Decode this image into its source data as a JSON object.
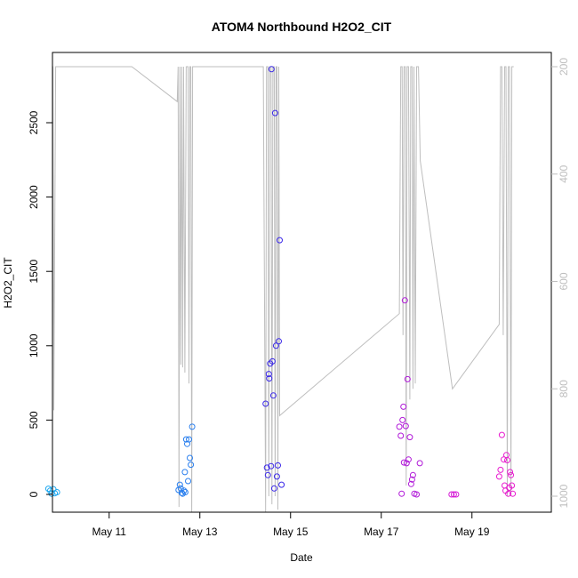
{
  "chart_data": {
    "type": "scatter",
    "title": "ATOM4 Northbound H2O2_CIT",
    "xlabel": "Date",
    "ylabel": "H2O2_CIT",
    "x_ticks": [
      "May 11",
      "May 13",
      "May 15",
      "May 17",
      "May 19"
    ],
    "y_ticks": [
      "0",
      "500",
      "1000",
      "1500",
      "2000",
      "2500"
    ],
    "y2_ticks": [
      "200",
      "400",
      "600",
      "800",
      "1000"
    ],
    "xlim_days": [
      9.75,
      20.05
    ],
    "ylim": [
      -110,
      2960
    ],
    "y2lim_reversed": [
      185,
      1030
    ],
    "axis_color": "#000000",
    "secondary_color": "#bebebe",
    "points": [
      {
        "x": 9.66,
        "y": 38,
        "c": "#1ea8f0"
      },
      {
        "x": 9.7,
        "y": 25,
        "c": "#1ea8f0"
      },
      {
        "x": 9.73,
        "y": 5,
        "c": "#1ea8f0"
      },
      {
        "x": 9.77,
        "y": 35,
        "c": "#1ea8f0"
      },
      {
        "x": 9.8,
        "y": 8,
        "c": "#1ea8f0"
      },
      {
        "x": 9.85,
        "y": 15,
        "c": "#1ea8f0"
      },
      {
        "x": 12.53,
        "y": 30,
        "c": "#2a7fee"
      },
      {
        "x": 12.56,
        "y": 65,
        "c": "#2a7fee"
      },
      {
        "x": 12.58,
        "y": 40,
        "c": "#2a7fee"
      },
      {
        "x": 12.6,
        "y": 10,
        "c": "#2a7fee"
      },
      {
        "x": 12.62,
        "y": 5,
        "c": "#2a7fee"
      },
      {
        "x": 12.65,
        "y": 25,
        "c": "#2a7fee"
      },
      {
        "x": 12.67,
        "y": 150,
        "c": "#2a7fee"
      },
      {
        "x": 12.68,
        "y": 15,
        "c": "#2a7fee"
      },
      {
        "x": 12.7,
        "y": 370,
        "c": "#2a7fee"
      },
      {
        "x": 12.72,
        "y": 340,
        "c": "#2a7fee"
      },
      {
        "x": 12.74,
        "y": 90,
        "c": "#2a7fee"
      },
      {
        "x": 12.76,
        "y": 370,
        "c": "#2a7fee"
      },
      {
        "x": 12.78,
        "y": 245,
        "c": "#2a7fee"
      },
      {
        "x": 12.8,
        "y": 200,
        "c": "#2a7fee"
      },
      {
        "x": 12.83,
        "y": 455,
        "c": "#2a7fee"
      },
      {
        "x": 14.45,
        "y": 610,
        "c": "#3a28e8"
      },
      {
        "x": 14.48,
        "y": 180,
        "c": "#3a28e8"
      },
      {
        "x": 14.5,
        "y": 130,
        "c": "#3a28e8"
      },
      {
        "x": 14.52,
        "y": 810,
        "c": "#3a28e8"
      },
      {
        "x": 14.53,
        "y": 780,
        "c": "#3a28e8"
      },
      {
        "x": 14.55,
        "y": 880,
        "c": "#3a28e8"
      },
      {
        "x": 14.57,
        "y": 190,
        "c": "#3a28e8"
      },
      {
        "x": 14.58,
        "y": 2860,
        "c": "#3a28e8"
      },
      {
        "x": 14.6,
        "y": 895,
        "c": "#3a28e8"
      },
      {
        "x": 14.62,
        "y": 665,
        "c": "#3a28e8"
      },
      {
        "x": 14.64,
        "y": 40,
        "c": "#3a28e8"
      },
      {
        "x": 14.66,
        "y": 2565,
        "c": "#3a28e8"
      },
      {
        "x": 14.68,
        "y": 1000,
        "c": "#3a28e8"
      },
      {
        "x": 14.7,
        "y": 120,
        "c": "#3a28e8"
      },
      {
        "x": 14.72,
        "y": 195,
        "c": "#3a28e8"
      },
      {
        "x": 14.74,
        "y": 1030,
        "c": "#3a28e8"
      },
      {
        "x": 14.76,
        "y": 1710,
        "c": "#3a28e8"
      },
      {
        "x": 14.8,
        "y": 65,
        "c": "#3a28e8"
      },
      {
        "x": 17.4,
        "y": 455,
        "c": "#b018d8"
      },
      {
        "x": 17.43,
        "y": 395,
        "c": "#b018d8"
      },
      {
        "x": 17.45,
        "y": 5,
        "c": "#b018d8"
      },
      {
        "x": 17.47,
        "y": 500,
        "c": "#b018d8"
      },
      {
        "x": 17.49,
        "y": 590,
        "c": "#b018d8"
      },
      {
        "x": 17.5,
        "y": 215,
        "c": "#b018d8"
      },
      {
        "x": 17.52,
        "y": 1305,
        "c": "#b018d8"
      },
      {
        "x": 17.54,
        "y": 460,
        "c": "#b018d8"
      },
      {
        "x": 17.56,
        "y": 210,
        "c": "#b018d8"
      },
      {
        "x": 17.58,
        "y": 775,
        "c": "#b018d8"
      },
      {
        "x": 17.6,
        "y": 235,
        "c": "#b018d8"
      },
      {
        "x": 17.63,
        "y": 385,
        "c": "#b018d8"
      },
      {
        "x": 17.66,
        "y": 70,
        "c": "#b018d8"
      },
      {
        "x": 17.68,
        "y": 100,
        "c": "#b018d8"
      },
      {
        "x": 17.7,
        "y": 130,
        "c": "#b018d8"
      },
      {
        "x": 17.73,
        "y": 5,
        "c": "#b018d8"
      },
      {
        "x": 17.78,
        "y": 0,
        "c": "#b018d8"
      },
      {
        "x": 17.85,
        "y": 210,
        "c": "#b018d8"
      },
      {
        "x": 18.55,
        "y": 0,
        "c": "#d61bd6"
      },
      {
        "x": 18.6,
        "y": 0,
        "c": "#d61bd6"
      },
      {
        "x": 18.65,
        "y": 0,
        "c": "#d61bd6"
      },
      {
        "x": 19.6,
        "y": 120,
        "c": "#e81ccf"
      },
      {
        "x": 19.63,
        "y": 165,
        "c": "#e81ccf"
      },
      {
        "x": 19.66,
        "y": 400,
        "c": "#e81ccf"
      },
      {
        "x": 19.7,
        "y": 235,
        "c": "#e81ccf"
      },
      {
        "x": 19.72,
        "y": 60,
        "c": "#e81ccf"
      },
      {
        "x": 19.74,
        "y": 25,
        "c": "#e81ccf"
      },
      {
        "x": 19.76,
        "y": 265,
        "c": "#e81ccf"
      },
      {
        "x": 19.78,
        "y": 230,
        "c": "#e81ccf"
      },
      {
        "x": 19.8,
        "y": 5,
        "c": "#e81ccf"
      },
      {
        "x": 19.82,
        "y": 45,
        "c": "#e81ccf"
      },
      {
        "x": 19.84,
        "y": 150,
        "c": "#e81ccf"
      },
      {
        "x": 19.86,
        "y": 130,
        "c": "#e81ccf"
      },
      {
        "x": 19.88,
        "y": 60,
        "c": "#e81ccf"
      },
      {
        "x": 19.9,
        "y": 5,
        "c": "#e81ccf"
      }
    ],
    "line_y2": [
      [
        9.65,
        380
      ],
      [
        9.7,
        800
      ],
      [
        9.72,
        200
      ],
      [
        9.76,
        200
      ],
      [
        9.78,
        840
      ],
      [
        9.82,
        200
      ],
      [
        9.92,
        200
      ],
      [
        11.5,
        200
      ],
      [
        12.5,
        265
      ],
      [
        12.52,
        200
      ],
      [
        12.54,
        1020
      ],
      [
        12.56,
        200
      ],
      [
        12.58,
        755
      ],
      [
        12.6,
        200
      ],
      [
        12.62,
        760
      ],
      [
        12.64,
        200
      ],
      [
        12.67,
        770
      ],
      [
        12.7,
        200
      ],
      [
        12.74,
        200
      ],
      [
        12.76,
        790
      ],
      [
        12.78,
        200
      ],
      [
        12.8,
        200
      ],
      [
        12.82,
        1040
      ],
      [
        12.84,
        200
      ],
      [
        12.86,
        200
      ],
      [
        13.6,
        200
      ],
      [
        14.4,
        200
      ],
      [
        14.45,
        1030
      ],
      [
        14.47,
        200
      ],
      [
        14.5,
        200
      ],
      [
        14.52,
        1000
      ],
      [
        14.54,
        200
      ],
      [
        14.57,
        200
      ],
      [
        14.59,
        1015
      ],
      [
        14.61,
        200
      ],
      [
        14.64,
        200
      ],
      [
        14.66,
        1000
      ],
      [
        14.68,
        200
      ],
      [
        14.7,
        200
      ],
      [
        14.72,
        1025
      ],
      [
        14.74,
        200
      ],
      [
        14.76,
        850
      ],
      [
        17.4,
        660
      ],
      [
        17.43,
        200
      ],
      [
        17.46,
        200
      ],
      [
        17.48,
        700
      ],
      [
        17.5,
        200
      ],
      [
        17.53,
        200
      ],
      [
        17.55,
        980
      ],
      [
        17.57,
        200
      ],
      [
        17.6,
        200
      ],
      [
        17.63,
        820
      ],
      [
        17.65,
        200
      ],
      [
        17.68,
        200
      ],
      [
        17.7,
        800
      ],
      [
        17.72,
        200
      ],
      [
        17.75,
        790
      ],
      [
        17.78,
        200
      ],
      [
        17.82,
        200
      ],
      [
        17.86,
        375
      ],
      [
        18.57,
        800
      ],
      [
        19.6,
        680
      ],
      [
        19.63,
        200
      ],
      [
        19.66,
        200
      ],
      [
        19.69,
        700
      ],
      [
        19.72,
        200
      ],
      [
        19.75,
        200
      ],
      [
        19.78,
        1000
      ],
      [
        19.8,
        200
      ],
      [
        19.83,
        200
      ],
      [
        19.86,
        1000
      ],
      [
        19.88,
        200
      ],
      [
        19.92,
        200
      ]
    ]
  }
}
